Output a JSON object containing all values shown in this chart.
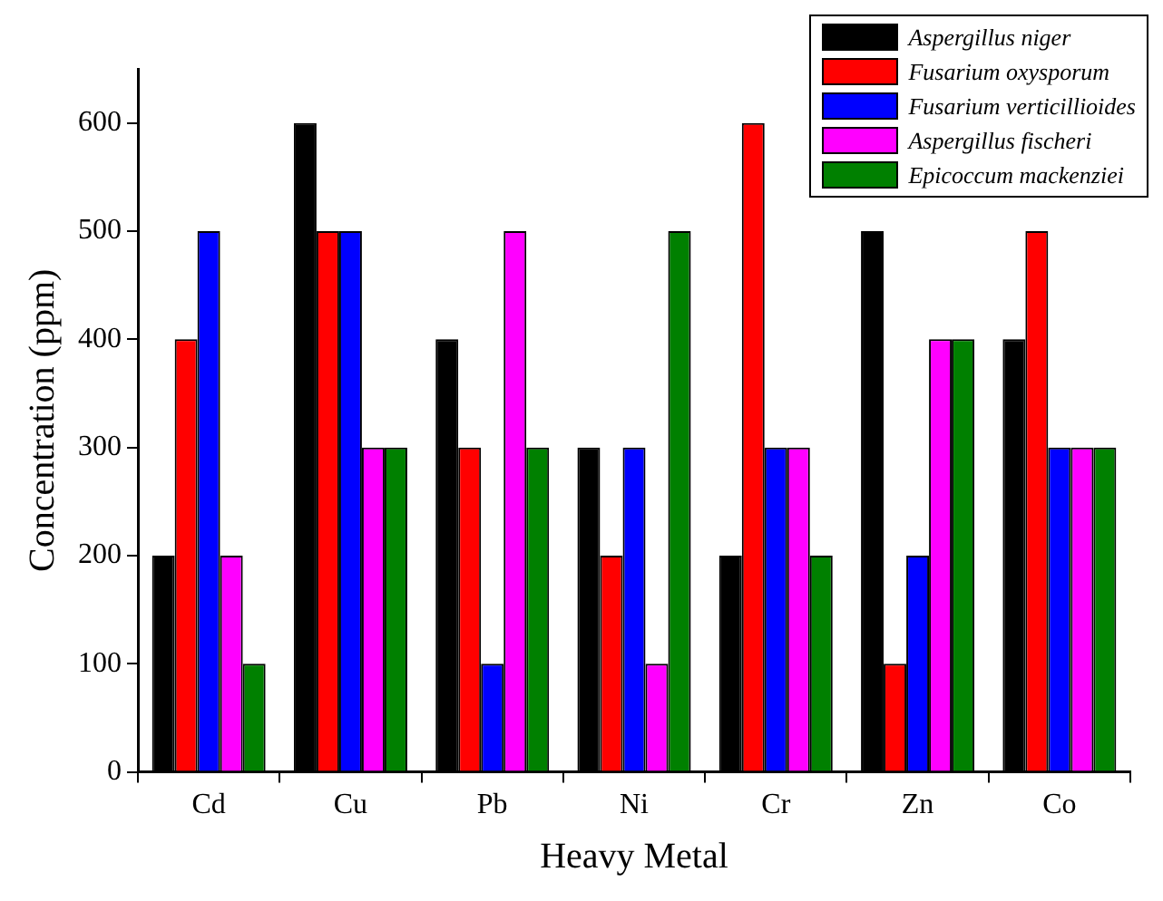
{
  "chart_data": {
    "type": "bar",
    "xlabel": "Heavy Metal",
    "ylabel": "Concentration (ppm)",
    "categories": [
      "Cd",
      "Cu",
      "Pb",
      "Ni",
      "Cr",
      "Zn",
      "Co"
    ],
    "series": [
      {
        "name": "Aspergillus niger",
        "color": "#000000",
        "values": [
          200,
          600,
          400,
          300,
          200,
          500,
          400
        ]
      },
      {
        "name": "Fusarium oxysporum",
        "color": "#ff0000",
        "values": [
          400,
          500,
          300,
          200,
          600,
          100,
          500
        ]
      },
      {
        "name": "Fusarium verticillioides",
        "color": "#0000ff",
        "values": [
          500,
          500,
          100,
          300,
          300,
          200,
          300
        ]
      },
      {
        "name": "Aspergillus fischeri",
        "color": "#ff00ff",
        "values": [
          200,
          300,
          500,
          100,
          300,
          400,
          300
        ]
      },
      {
        "name": "Epicoccum mackenziei",
        "color": "#008000",
        "values": [
          100,
          300,
          300,
          500,
          200,
          400,
          300
        ]
      }
    ],
    "ylim": [
      0,
      650
    ],
    "yticks": [
      0,
      100,
      200,
      300,
      400,
      500,
      600
    ],
    "grid": false,
    "legend": "top right"
  }
}
